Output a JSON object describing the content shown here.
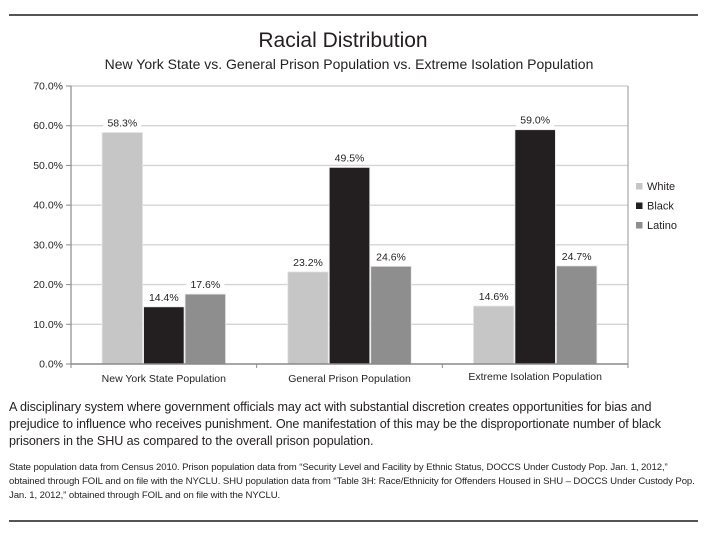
{
  "chart_data": {
    "type": "bar",
    "title": "Racial Distribution",
    "subtitle": "New York State vs. General Prison Population vs. Extreme Isolation Population",
    "xlabel": "",
    "ylabel": "",
    "ylim": [
      0,
      70
    ],
    "yticks": [
      0,
      10,
      20,
      30,
      40,
      50,
      60,
      70
    ],
    "ytick_labels": [
      "0.0%",
      "10.0%",
      "20.0%",
      "30.0%",
      "40.0%",
      "50.0%",
      "60.0%",
      "70.0%"
    ],
    "grid": true,
    "legend_position": "right",
    "categories": [
      "New York State Population",
      "General Prison Population",
      "Extreme Isolation Population"
    ],
    "series": [
      {
        "name": "White",
        "color": "#c6c6c6",
        "values": [
          58.3,
          23.2,
          14.6
        ],
        "labels": [
          "58.3%",
          "23.2%",
          "14.6%"
        ]
      },
      {
        "name": "Black",
        "color": "#231f20",
        "values": [
          14.4,
          49.5,
          59.0
        ],
        "labels": [
          "14.4%",
          "49.5%",
          "59.0%"
        ]
      },
      {
        "name": "Latino",
        "color": "#8e8e8e",
        "values": [
          17.6,
          24.6,
          24.7
        ],
        "labels": [
          "17.6%",
          "24.6%",
          "24.7%"
        ]
      }
    ]
  },
  "text": {
    "paragraph": "A disciplinary system where government officials may act with substantial discretion creates opportunities for bias and prejudice to influence who receives punishment. One manifestation of this may be the disproportionate number of black prisoners in the SHU as compared to the overall prison population.",
    "source_note": "State population data from Census 2010. Prison population data from “Security Level and Facility by Ethnic Status, DOCCS Under Custody Pop. Jan. 1, 2012,” obtained through FOIL and on file with the NYCLU. SHU population data from “Table 3H: Race/Ethnicity for Offenders Housed in SHU – DOCCS Under Custody Pop. Jan. 1, 2012,” obtained through FOIL and on file with the NYCLU."
  }
}
